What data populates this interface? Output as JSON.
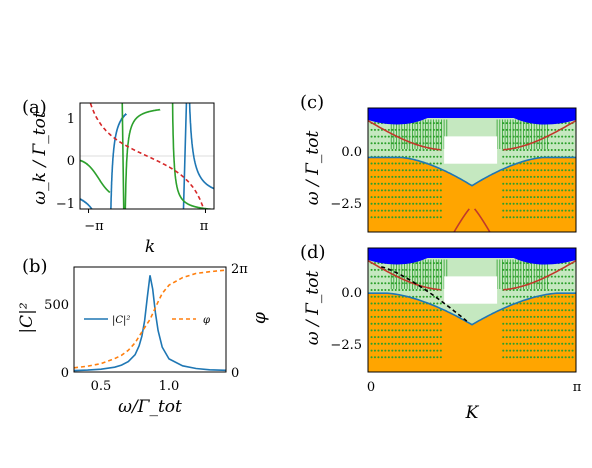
{
  "colors": {
    "blue": "#1f77b4",
    "orange_dashed": "#ff7f0e",
    "green": "#2ca02c",
    "red_dashed": "#d62728",
    "red_band": "#c0392b",
    "orange_fill": "#ffa500",
    "light_green_fill": "#c5e8c0",
    "deep_blue": "#0000ff"
  },
  "chart_data": [
    {
      "id": "a",
      "type": "line",
      "panel_label": "(a)",
      "xlabel": "k",
      "ylabel": "ω_k / Γ_tot",
      "xlim": [
        -3.6,
        3.6
      ],
      "ylim": [
        -1.3,
        1.3
      ],
      "x_ticks": [
        "−π",
        "π"
      ],
      "y_ticks": [
        "−1",
        "0",
        "1"
      ],
      "series_style": [
        {
          "color": "blue",
          "style": "solid"
        },
        {
          "color": "green",
          "style": "solid"
        },
        {
          "color": "red_dashed",
          "style": "dashed"
        }
      ]
    },
    {
      "id": "b",
      "type": "line",
      "panel_label": "(b)",
      "xlabel": "ω/Γ_tot",
      "ylabel_left": "|C|²",
      "ylabel_right": "φ",
      "xlim": [
        0.3,
        1.42
      ],
      "ylim_left": [
        0,
        760
      ],
      "ylim_right": [
        0,
        6.2832
      ],
      "x_ticks": [
        "0.5",
        "1.0"
      ],
      "y_ticks_left": [
        "0",
        "500"
      ],
      "y_ticks_right": [
        "0",
        "2π"
      ],
      "series": [
        {
          "name": "|C|²",
          "axis": "left",
          "style": "solid",
          "color": "blue",
          "x": [
            0.3,
            0.4,
            0.5,
            0.6,
            0.65,
            0.7,
            0.75,
            0.78,
            0.8,
            0.82,
            0.84,
            0.86,
            0.88,
            0.9,
            0.92,
            0.95,
            1.0,
            1.1,
            1.2,
            1.3,
            1.42
          ],
          "y": [
            10,
            14,
            20,
            35,
            50,
            75,
            125,
            190,
            260,
            370,
            540,
            700,
            600,
            430,
            300,
            180,
            95,
            45,
            25,
            16,
            12
          ]
        },
        {
          "name": "φ",
          "axis": "right",
          "style": "dashed",
          "color": "orange_dashed",
          "x": [
            0.3,
            0.4,
            0.5,
            0.6,
            0.65,
            0.7,
            0.75,
            0.8,
            0.84,
            0.86,
            0.88,
            0.92,
            0.95,
            1.0,
            1.1,
            1.2,
            1.3,
            1.42
          ],
          "y": [
            0.25,
            0.35,
            0.5,
            0.8,
            1.0,
            1.3,
            1.75,
            2.4,
            2.9,
            3.14,
            3.5,
            4.2,
            4.7,
            5.2,
            5.65,
            5.9,
            6.0,
            6.1
          ]
        }
      ]
    },
    {
      "id": "c",
      "type": "area",
      "panel_label": "(c)",
      "ylabel": "ω / Γ_tot",
      "xlim": [
        0,
        3.1416
      ],
      "ylim": [
        -4.1,
        1.8
      ],
      "y_ticks": [
        "0.0",
        "−2.5"
      ]
    },
    {
      "id": "d",
      "type": "area",
      "panel_label": "(d)",
      "xlabel": "K",
      "ylabel": "ω / Γ_tot",
      "xlim": [
        0,
        3.1416
      ],
      "ylim": [
        -4.1,
        1.8
      ],
      "x_ticks": [
        "0",
        "π"
      ],
      "y_ticks": [
        "0.0",
        "−2.5"
      ]
    }
  ]
}
